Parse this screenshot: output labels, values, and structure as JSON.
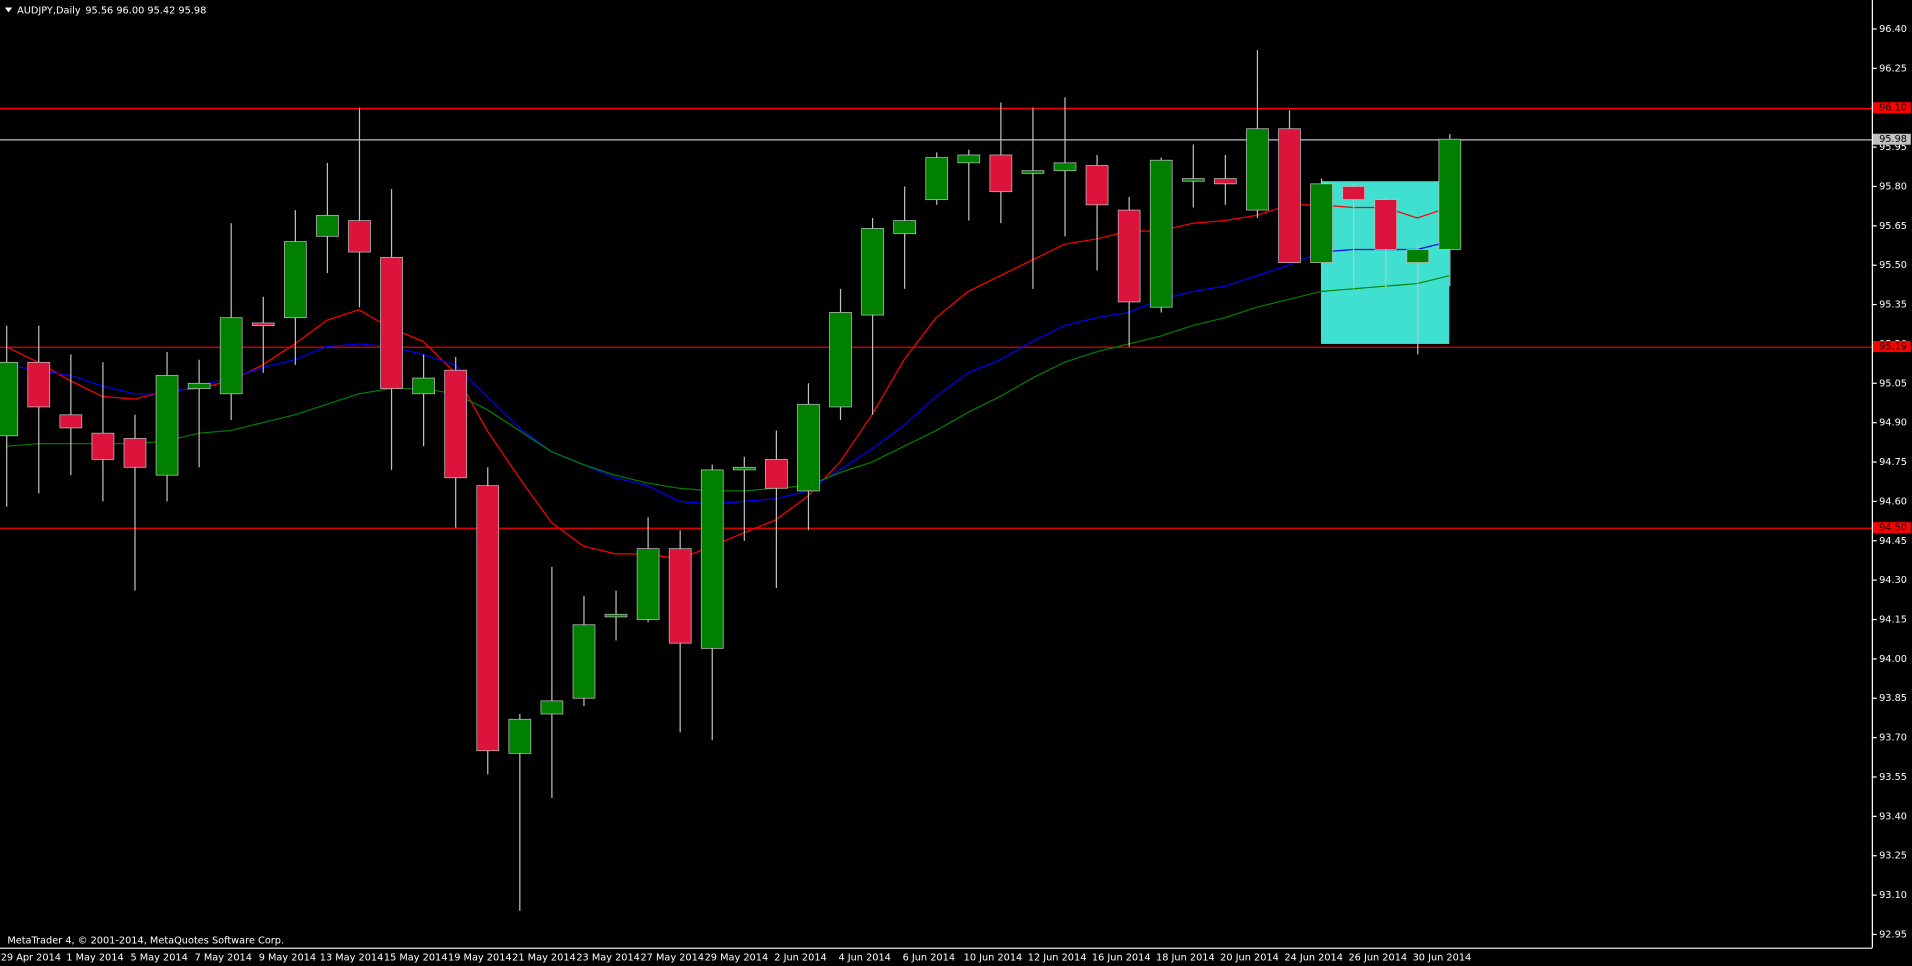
{
  "chart_data": {
    "type": "candlestick",
    "title": "AUDJPY,Daily",
    "quote": "95.56 96.00 95.42 95.98",
    "footer": "MetaTrader 4, © 2001-2014, MetaQuotes Software Corp.",
    "categories": [
      null,
      "29 Apr 2014",
      null,
      "1 May 2014",
      null,
      "5 May 2014",
      null,
      "7 May 2014",
      null,
      "9 May 2014",
      null,
      "13 May 2014",
      null,
      "15 May 2014",
      null,
      "19 May 2014",
      null,
      "21 May 2014",
      null,
      "23 May 2014",
      null,
      "27 May 2014",
      null,
      "29 May 2014",
      null,
      "2 Jun 2014",
      null,
      "4 Jun 2014",
      null,
      "6 Jun 2014",
      null,
      "10 Jun 2014",
      null,
      "12 Jun 2014",
      null,
      "16 Jun 2014",
      null,
      "18 Jun 2014",
      null,
      "20 Jun 2014",
      null,
      "24 Jun 2014",
      null,
      "26 Jun 2014",
      null,
      "30 Jun 2014"
    ],
    "open": [
      94.85,
      95.13,
      94.93,
      94.86,
      94.84,
      94.7,
      95.03,
      95.01,
      95.28,
      95.3,
      95.61,
      95.67,
      95.53,
      95.01,
      95.1,
      94.66,
      93.64,
      93.79,
      93.85,
      94.16,
      94.15,
      94.42,
      94.04,
      94.72,
      94.76,
      94.64,
      94.96,
      95.31,
      95.62,
      95.75,
      95.89,
      95.92,
      95.85,
      95.86,
      95.88,
      95.71,
      95.34,
      95.82,
      95.83,
      95.71,
      96.02,
      95.51,
      95.8,
      95.75,
      95.51,
      95.56
    ],
    "high": [
      95.27,
      95.27,
      95.16,
      95.13,
      94.93,
      95.17,
      95.14,
      95.66,
      95.38,
      95.71,
      95.89,
      96.1,
      95.79,
      95.16,
      95.15,
      94.73,
      93.79,
      94.35,
      94.24,
      94.26,
      94.54,
      94.49,
      94.74,
      94.77,
      94.87,
      95.05,
      95.41,
      95.68,
      95.8,
      95.93,
      95.94,
      96.12,
      96.1,
      96.14,
      95.92,
      95.76,
      95.91,
      95.96,
      95.92,
      96.32,
      96.09,
      95.83,
      95.81,
      95.76,
      95.58,
      96.0
    ],
    "low": [
      94.58,
      94.63,
      94.7,
      94.6,
      94.26,
      94.6,
      94.73,
      94.91,
      95.09,
      95.12,
      95.47,
      95.34,
      94.72,
      94.81,
      94.5,
      93.56,
      93.04,
      93.47,
      93.82,
      94.07,
      94.14,
      93.72,
      93.69,
      94.45,
      94.27,
      94.49,
      94.91,
      94.93,
      95.41,
      95.73,
      95.67,
      95.66,
      95.41,
      95.61,
      95.48,
      95.19,
      95.32,
      95.72,
      95.73,
      95.68,
      95.51,
      95.5,
      95.41,
      95.41,
      95.16,
      95.42
    ],
    "close": [
      95.13,
      94.96,
      94.88,
      94.76,
      94.73,
      95.08,
      95.05,
      95.3,
      95.27,
      95.59,
      95.69,
      95.55,
      95.03,
      95.07,
      94.69,
      93.65,
      93.77,
      93.84,
      94.13,
      94.17,
      94.42,
      94.06,
      94.72,
      94.73,
      94.65,
      94.97,
      95.32,
      95.64,
      95.67,
      95.91,
      95.92,
      95.78,
      95.86,
      95.89,
      95.73,
      95.36,
      95.9,
      95.83,
      95.81,
      96.02,
      95.51,
      95.81,
      95.75,
      95.56,
      95.56,
      95.98
    ],
    "up_color": "#008000",
    "down_color": "#dc143c",
    "overlays": [
      {
        "color": "#ff0000",
        "values": [
          95.19,
          95.13,
          95.06,
          95.0,
          94.99,
          95.02,
          95.03,
          95.06,
          95.12,
          95.2,
          95.29,
          95.33,
          95.26,
          95.21,
          95.09,
          94.87,
          94.69,
          94.52,
          94.43,
          94.4,
          94.4,
          94.38,
          94.43,
          94.48,
          94.53,
          94.62,
          94.75,
          94.93,
          95.14,
          95.3,
          95.4,
          95.46,
          95.52,
          95.58,
          95.6,
          95.63,
          95.63,
          95.66,
          95.67,
          95.69,
          95.73,
          95.73,
          95.72,
          95.72,
          95.68,
          95.72
        ]
      },
      {
        "color": "#0000ff",
        "values": [
          95.12,
          95.1,
          95.08,
          95.04,
          95.01,
          95.01,
          95.04,
          95.07,
          95.11,
          95.14,
          95.19,
          95.2,
          95.19,
          95.16,
          95.12,
          95.0,
          94.88,
          94.79,
          94.74,
          94.69,
          94.66,
          94.6,
          94.59,
          94.6,
          94.61,
          94.64,
          94.72,
          94.8,
          94.89,
          95.0,
          95.09,
          95.14,
          95.21,
          95.27,
          95.3,
          95.32,
          95.37,
          95.4,
          95.42,
          95.46,
          95.5,
          95.55,
          95.56,
          95.56,
          95.56,
          95.59
        ]
      },
      {
        "color": "#008000",
        "values": [
          94.81,
          94.82,
          94.82,
          94.82,
          94.82,
          94.83,
          94.86,
          94.87,
          94.9,
          94.93,
          94.97,
          95.01,
          95.03,
          95.03,
          95.01,
          94.95,
          94.87,
          94.79,
          94.74,
          94.7,
          94.67,
          94.65,
          94.64,
          94.64,
          94.65,
          94.66,
          94.71,
          94.75,
          94.81,
          94.87,
          94.94,
          95.0,
          95.07,
          95.13,
          95.17,
          95.2,
          95.23,
          95.27,
          95.3,
          95.34,
          95.37,
          95.4,
          95.41,
          95.42,
          95.43,
          95.46
        ]
      }
    ],
    "levels": [
      {
        "value": 96.1,
        "label": "96.10",
        "color": "#ff0000"
      },
      {
        "value": 95.98,
        "label": "95.98",
        "color": "#c0c0c0"
      },
      {
        "value": 95.19,
        "label": "95.19",
        "color": "#ff0000"
      },
      {
        "value": 94.5,
        "label": "94.50",
        "color": "#ff0000"
      }
    ],
    "rectangle": {
      "from": "24 Jun 2014",
      "to": "30 Jun 2014",
      "top": 95.82,
      "bottom": 95.2,
      "color": "#40e0d0"
    },
    "ylim": [
      92.9,
      96.51
    ],
    "yticks": [
      {
        "value": 96.4,
        "label": "96.40"
      },
      {
        "value": 96.25,
        "label": "96.25"
      },
      {
        "value": 96.1,
        "label": "96.10"
      },
      {
        "value": 95.95,
        "label": "95.95"
      },
      {
        "value": 95.8,
        "label": "95.80"
      },
      {
        "value": 95.65,
        "label": "95.65"
      },
      {
        "value": 95.5,
        "label": "95.50"
      },
      {
        "value": 95.35,
        "label": "95.35"
      },
      {
        "value": 95.2,
        "label": "95.20"
      },
      {
        "value": 95.05,
        "label": "95.05"
      },
      {
        "value": 94.9,
        "label": "94.90"
      },
      {
        "value": 94.75,
        "label": "94.75"
      },
      {
        "value": 94.6,
        "label": "94.60"
      },
      {
        "value": 94.45,
        "label": "94.45"
      },
      {
        "value": 94.3,
        "label": "94.30"
      },
      {
        "value": 94.15,
        "label": "94.15"
      },
      {
        "value": 94.0,
        "label": "94.00"
      },
      {
        "value": 93.85,
        "label": "93.85"
      },
      {
        "value": 93.7,
        "label": "93.70"
      },
      {
        "value": 93.55,
        "label": "93.55"
      },
      {
        "value": 93.4,
        "label": "93.40"
      },
      {
        "value": 93.25,
        "label": "93.25"
      },
      {
        "value": 93.1,
        "label": "93.10"
      },
      {
        "value": 92.95,
        "label": "92.95"
      }
    ]
  }
}
